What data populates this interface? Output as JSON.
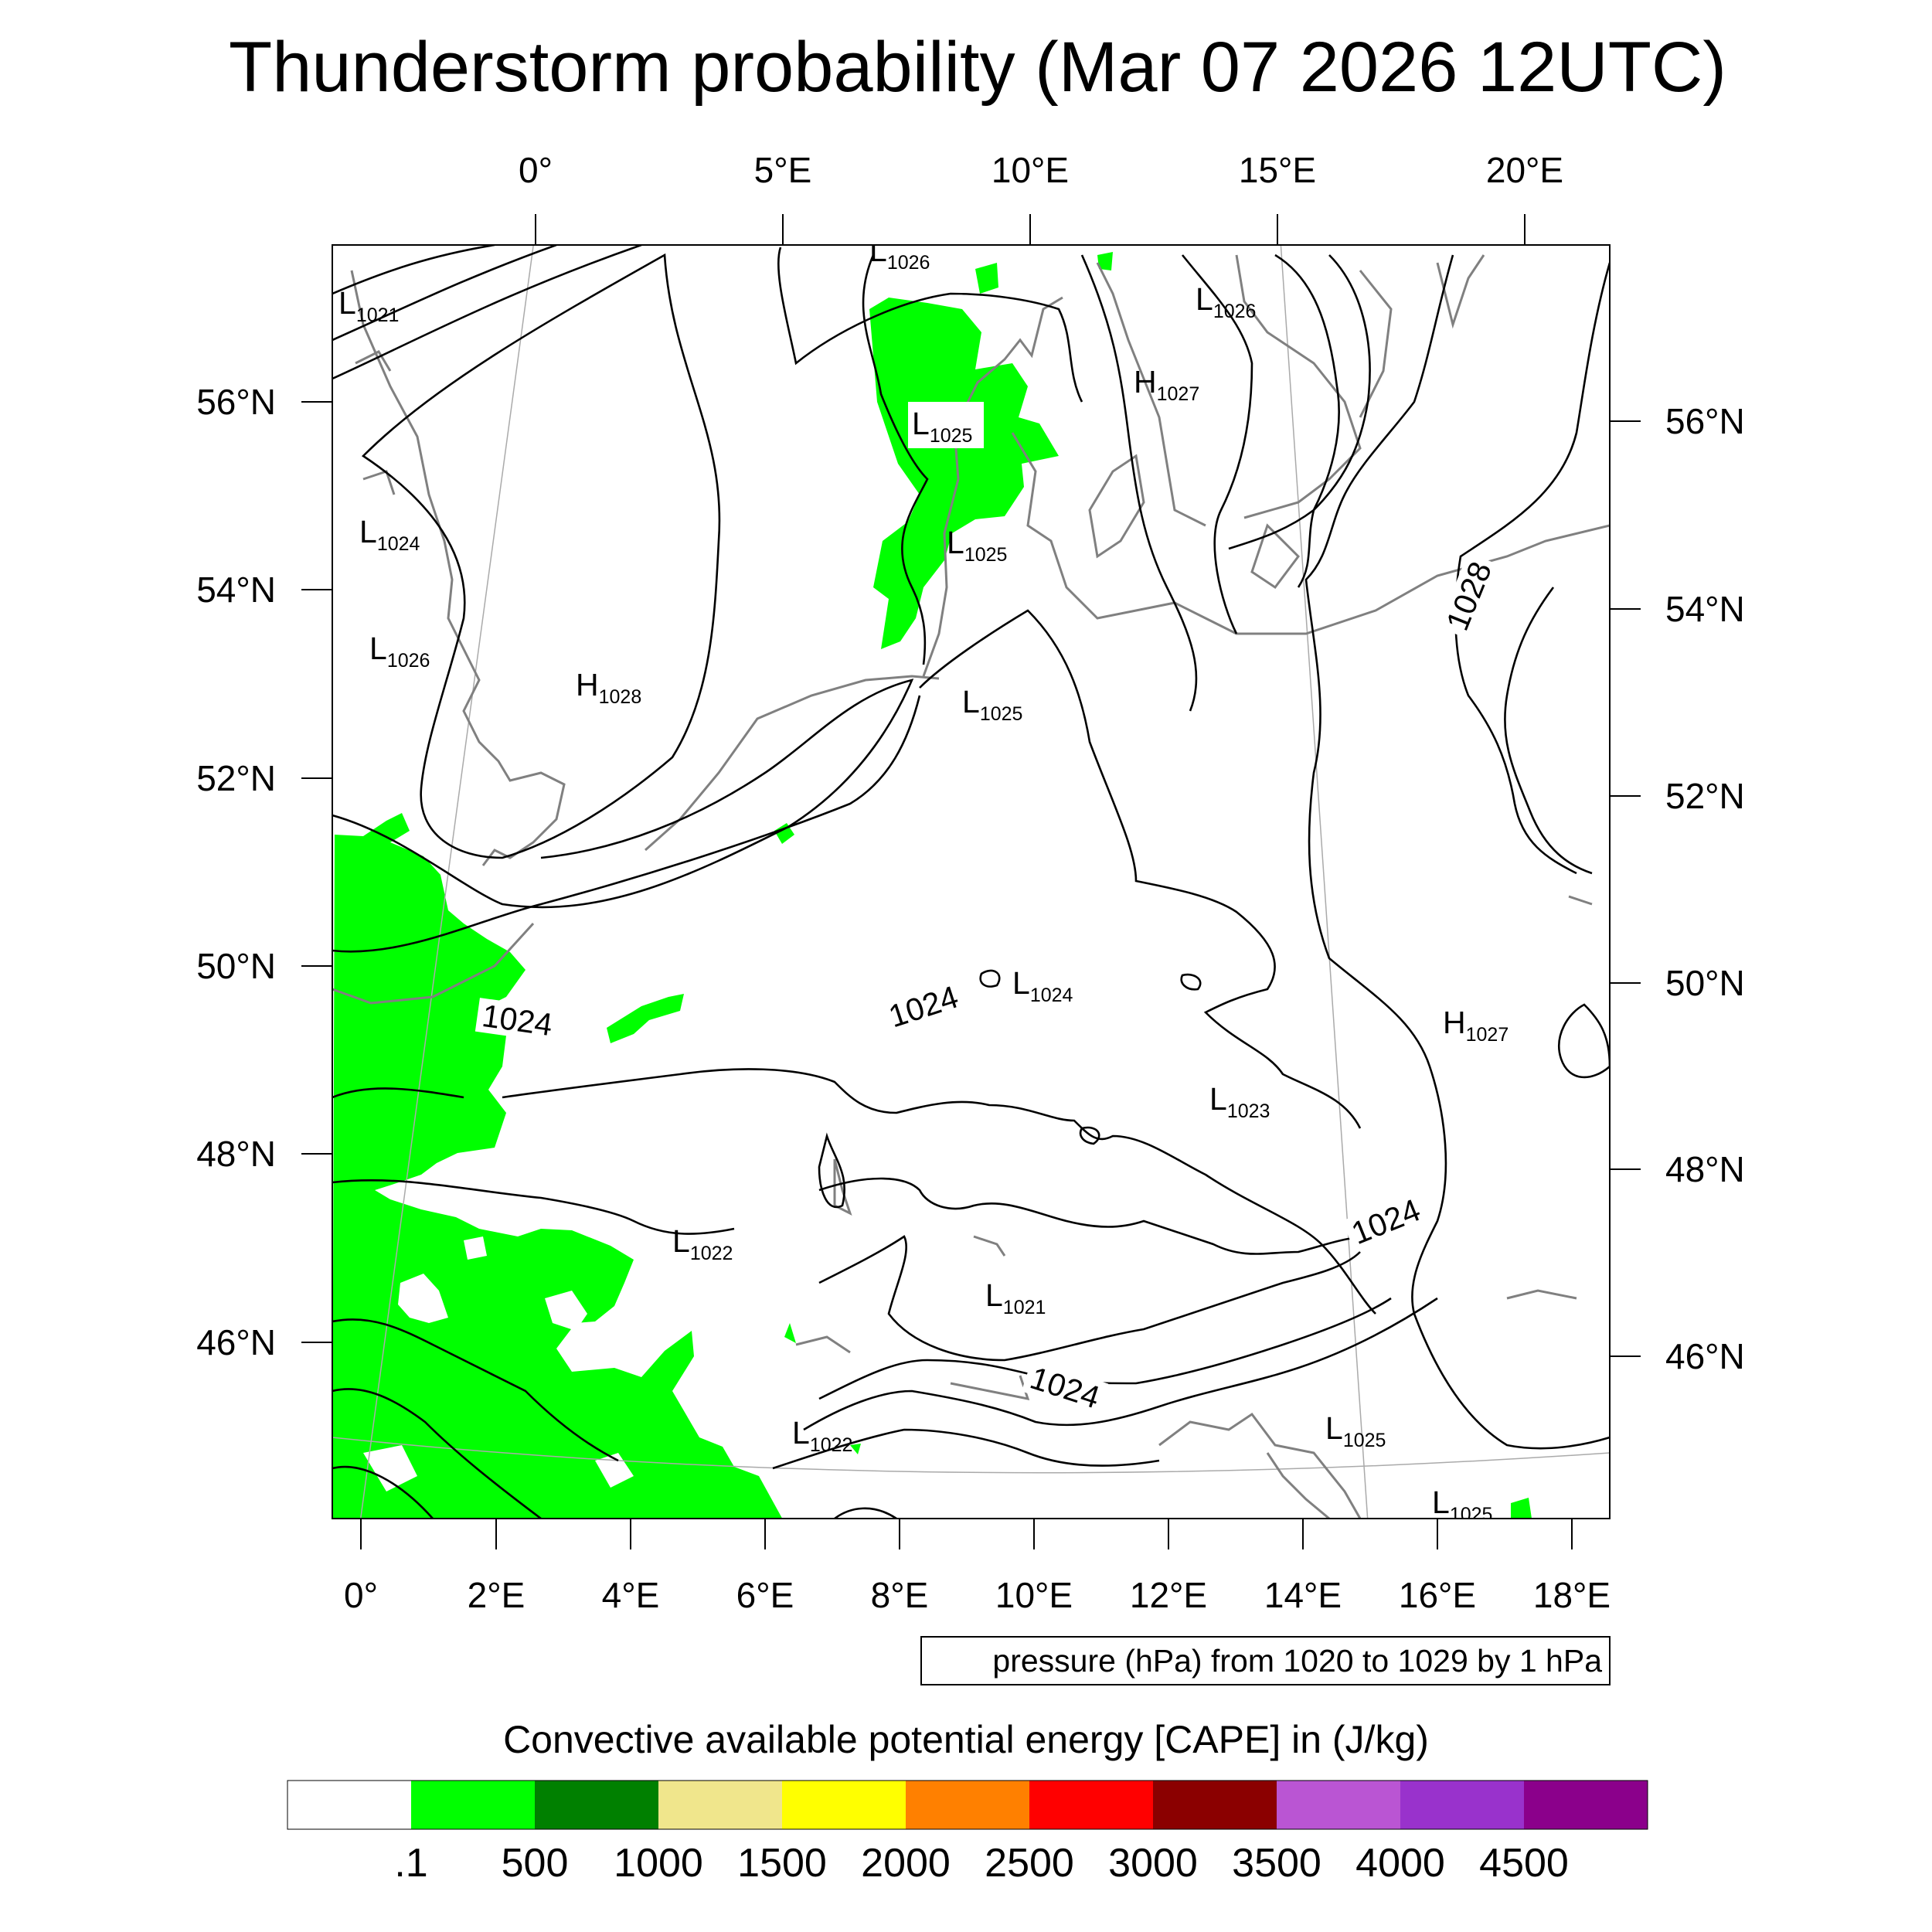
{
  "title": "Thunderstorm probability (Mar 07 2026 12UTC)",
  "top_lon_labels": [
    "0°",
    "5°E",
    "10°E",
    "15°E",
    "20°E"
  ],
  "bottom_lon_labels": [
    "0°",
    "2°E",
    "4°E",
    "6°E",
    "8°E",
    "10°E",
    "12°E",
    "14°E",
    "16°E",
    "18°E"
  ],
  "left_lat_labels": [
    "56°N",
    "54°N",
    "52°N",
    "50°N",
    "48°N",
    "46°N"
  ],
  "right_lat_labels": [
    "56°N",
    "54°N",
    "52°N",
    "50°N",
    "48°N",
    "46°N"
  ],
  "contour_note": "pressure (hPa) from 1020 to 1029 by 1 hPa",
  "contour_line_labels": [
    "1024",
    "1024",
    "1024",
    "1024",
    "1028"
  ],
  "pressure_centers": [
    {
      "type": "L",
      "value": "1026"
    },
    {
      "type": "L",
      "value": "1021"
    },
    {
      "type": "L",
      "value": "1026"
    },
    {
      "type": "H",
      "value": "1027"
    },
    {
      "type": "L",
      "value": "1025"
    },
    {
      "type": "L",
      "value": "1024"
    },
    {
      "type": "L",
      "value": "1025"
    },
    {
      "type": "L",
      "value": "1026"
    },
    {
      "type": "H",
      "value": "1028"
    },
    {
      "type": "L",
      "value": "1025"
    },
    {
      "type": "L",
      "value": "1024"
    },
    {
      "type": "H",
      "value": "1027"
    },
    {
      "type": "L",
      "value": "1023"
    },
    {
      "type": "L",
      "value": "1022"
    },
    {
      "type": "L",
      "value": "1021"
    },
    {
      "type": "L",
      "value": "1022"
    },
    {
      "type": "L",
      "value": "1025"
    },
    {
      "type": "L",
      "value": "1025"
    }
  ],
  "colorbar": {
    "title": "Convective available potential energy [CAPE] in (J/kg)",
    "colors": [
      "#ffffff",
      "#00ff00",
      "#008000",
      "#f0e68c",
      "#ffff00",
      "#ff8000",
      "#ff0000",
      "#8b0000",
      "#ba55d3",
      "#9932cc",
      "#8b008b"
    ],
    "labels": [
      ".1",
      "500",
      "1000",
      "1500",
      "2000",
      "2500",
      "3000",
      "3500",
      "4000",
      "4500"
    ]
  },
  "cape_fill_color": "#00ff00"
}
